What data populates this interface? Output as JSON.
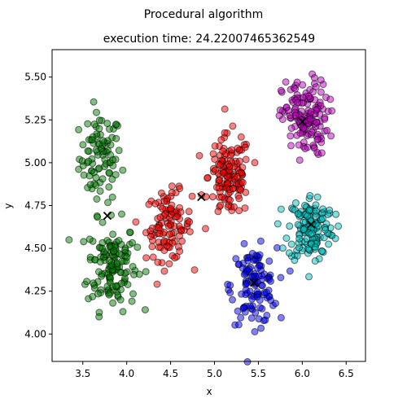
{
  "chart_data": {
    "type": "scatter",
    "suptitle": "Procedural algorithm",
    "title": "execution time: 24.22007465362549",
    "xlabel": "x",
    "ylabel": "y",
    "xlim": [
      3.15,
      6.72
    ],
    "ylim": [
      3.84,
      5.66
    ],
    "xticks": [
      "3.5",
      "4.0",
      "4.5",
      "5.0",
      "5.5",
      "6.0",
      "6.5"
    ],
    "yticks": [
      "4.00",
      "4.25",
      "4.50",
      "4.75",
      "5.00",
      "5.25",
      "5.50"
    ],
    "grid": false,
    "series": [
      {
        "color": "#008000",
        "center": [
          3.78,
          4.69
        ],
        "count": 230,
        "blobs": [
          {
            "cx": 3.7,
            "cy": 5.03,
            "sx": 0.12,
            "sy": 0.13,
            "n": 90
          },
          {
            "cx": 3.83,
            "cy": 4.4,
            "sx": 0.14,
            "sy": 0.13,
            "n": 140
          }
        ]
      },
      {
        "color": "#ff0000",
        "center": [
          4.85,
          4.8
        ],
        "count": 250,
        "blobs": [
          {
            "cx": 4.48,
            "cy": 4.63,
            "sx": 0.13,
            "sy": 0.1,
            "n": 110
          },
          {
            "cx": 5.17,
            "cy": 4.92,
            "sx": 0.12,
            "sy": 0.12,
            "n": 140
          }
        ]
      },
      {
        "color": "#0000ff",
        "center": [
          5.45,
          4.3
        ],
        "count": 120,
        "blobs": [
          {
            "cx": 5.45,
            "cy": 4.28,
            "sx": 0.13,
            "sy": 0.11,
            "n": 120
          }
        ]
      },
      {
        "color": "#00c0c0",
        "center": [
          6.1,
          4.64
        ],
        "count": 150,
        "blobs": [
          {
            "cx": 6.1,
            "cy": 4.62,
            "sx": 0.13,
            "sy": 0.1,
            "n": 150
          }
        ]
      },
      {
        "color": "#c000c0",
        "center": [
          6.0,
          5.24
        ],
        "count": 150,
        "blobs": [
          {
            "cx": 6.03,
            "cy": 5.26,
            "sx": 0.13,
            "sy": 0.11,
            "n": 150
          }
        ]
      }
    ],
    "centroid_marker": "x",
    "point_alpha": 0.5
  }
}
